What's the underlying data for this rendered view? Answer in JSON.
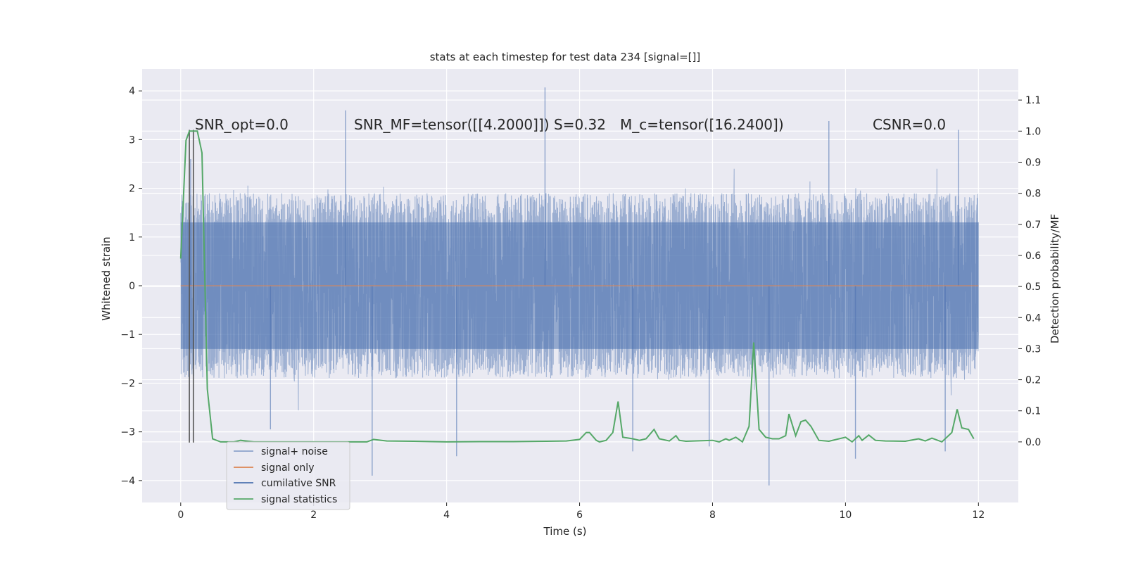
{
  "chart_data": {
    "type": "line",
    "title": "stats at each timestep for test data 234 [signal=[]]",
    "xlabel": "Time (s)",
    "ylabel": "Whitened strain",
    "y2label": "Detection probability/MF",
    "xlim": [
      -0.58,
      12.6
    ],
    "ylim": [
      -4.45,
      4.45
    ],
    "y2lim": [
      -0.195,
      1.2
    ],
    "xticks": [
      0,
      2,
      4,
      6,
      8,
      10,
      12
    ],
    "xtick_labels": [
      "0",
      "2",
      "4",
      "6",
      "8",
      "10",
      "12"
    ],
    "yticks": [
      4,
      3,
      2,
      1,
      0,
      -1,
      -2,
      -3,
      -4
    ],
    "ytick_labels": [
      "4",
      "3",
      "2",
      "1",
      "0",
      "−1",
      "−2",
      "−3",
      "−4"
    ],
    "y2ticks": [
      1.1,
      1.0,
      0.9,
      0.8,
      0.7,
      0.6,
      0.5,
      0.4,
      0.3,
      0.2,
      0.1,
      0.0
    ],
    "y2tick_labels": [
      "1.1",
      "1.0",
      "0.9",
      "0.8",
      "0.7",
      "0.6",
      "0.5",
      "0.4",
      "0.3",
      "0.2",
      "0.1",
      "0.0"
    ],
    "grid": true,
    "legend_placement": "lower-left",
    "annotations": [
      {
        "text": "SNR_opt=0.0",
        "x": 0.22,
        "y": 3.3
      },
      {
        "text": "SNR_MF=tensor([[4.2000]])",
        "x": 2.62,
        "y": 3.3
      },
      {
        "text": "S=0.32",
        "x": 5.68,
        "y": 3.3
      },
      {
        "text": "M_c=tensor([16.2400])",
        "x": 6.68,
        "y": 3.3
      },
      {
        "text": "CSNR=0.0",
        "x": 10.42,
        "y": 3.3
      }
    ],
    "series": [
      {
        "name": "signal+ noise",
        "color": "#4c72b0",
        "axis": "left",
        "style": "noise band",
        "x_range": [
          0,
          12
        ],
        "core_band": [
          -1.3,
          1.3
        ],
        "typical_envelope": [
          -2.3,
          2.3
        ],
        "spikes": [
          {
            "x": 5.48,
            "y": 4.07
          },
          {
            "x": 2.48,
            "y": 3.6
          },
          {
            "x": 9.75,
            "y": 3.38
          },
          {
            "x": 11.7,
            "y": 3.2
          },
          {
            "x": 0.15,
            "y": 2.6
          },
          {
            "x": 8.85,
            "y": -4.1
          },
          {
            "x": 2.88,
            "y": -3.9
          },
          {
            "x": 4.15,
            "y": -3.5
          },
          {
            "x": 10.15,
            "y": -3.55
          },
          {
            "x": 6.8,
            "y": -3.4
          },
          {
            "x": 11.5,
            "y": -3.4
          },
          {
            "x": 1.35,
            "y": -2.95
          },
          {
            "x": 7.95,
            "y": -3.3
          }
        ]
      },
      {
        "name": "signal only",
        "color": "#dd8452",
        "axis": "left",
        "x": [
          0,
          12
        ],
        "y": [
          0,
          0
        ]
      },
      {
        "name": "cumilative SNR",
        "color": "#4c72b0",
        "axis": "right",
        "x": [],
        "y": []
      },
      {
        "name": "signal statistics",
        "color": "#55a868",
        "axis": "right",
        "x": [
          0.0,
          0.08,
          0.13,
          0.2,
          0.25,
          0.32,
          0.4,
          0.48,
          0.6,
          0.8,
          0.9,
          1.1,
          1.5,
          2.0,
          2.5,
          2.8,
          2.9,
          3.1,
          3.5,
          4.0,
          4.5,
          5.0,
          5.5,
          5.8,
          6.0,
          6.1,
          6.15,
          6.25,
          6.3,
          6.4,
          6.5,
          6.58,
          6.65,
          6.8,
          6.9,
          7.0,
          7.12,
          7.2,
          7.35,
          7.45,
          7.5,
          7.6,
          8.0,
          8.1,
          8.2,
          8.25,
          8.35,
          8.45,
          8.55,
          8.62,
          8.7,
          8.8,
          8.9,
          9.0,
          9.1,
          9.15,
          9.25,
          9.33,
          9.4,
          9.48,
          9.6,
          9.75,
          10.0,
          10.1,
          10.2,
          10.25,
          10.35,
          10.45,
          10.6,
          10.9,
          11.1,
          11.2,
          11.3,
          11.45,
          11.6,
          11.68,
          11.75,
          11.85,
          11.93
        ],
        "y": [
          0.59,
          0.97,
          1.0,
          1.0,
          1.0,
          0.93,
          0.17,
          0.01,
          0.0,
          0.0,
          0.005,
          0.0,
          0.0,
          0.0,
          0.0,
          0.0,
          0.008,
          0.003,
          0.002,
          0.0,
          0.001,
          0.001,
          0.002,
          0.003,
          0.008,
          0.03,
          0.03,
          0.005,
          0.0,
          0.005,
          0.03,
          0.13,
          0.015,
          0.01,
          0.005,
          0.01,
          0.04,
          0.01,
          0.003,
          0.02,
          0.005,
          0.002,
          0.005,
          0.0,
          0.01,
          0.005,
          0.015,
          0.0,
          0.05,
          0.32,
          0.04,
          0.015,
          0.01,
          0.01,
          0.02,
          0.09,
          0.02,
          0.065,
          0.07,
          0.05,
          0.005,
          0.002,
          0.015,
          0.0,
          0.02,
          0.005,
          0.022,
          0.005,
          0.003,
          0.002,
          0.01,
          0.003,
          0.012,
          0.0,
          0.03,
          0.105,
          0.045,
          0.04,
          0.01
        ]
      }
    ],
    "vertical_markers": [
      {
        "x": 0.13,
        "y_range": [
          -3.22,
          3.2
        ],
        "color": "#555555"
      },
      {
        "x": 0.19,
        "y_range": [
          -3.22,
          3.2
        ],
        "color": "#555555"
      }
    ]
  }
}
